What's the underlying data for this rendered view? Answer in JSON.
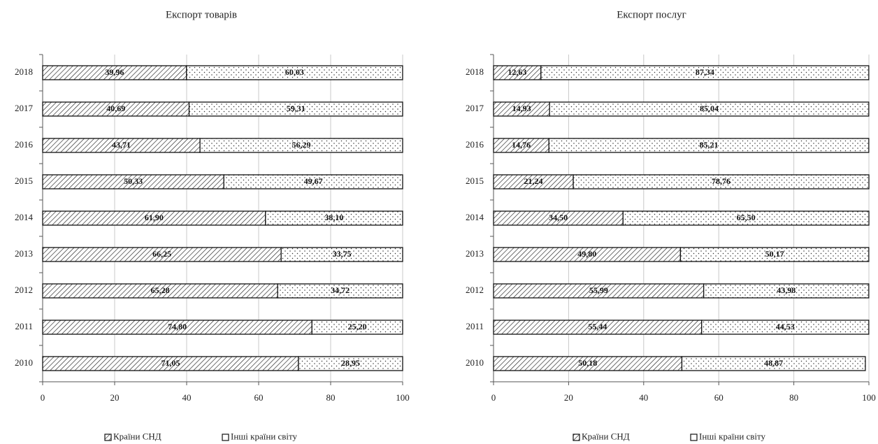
{
  "legend": {
    "cis": "Країни СНД",
    "other": "Інші країни світу"
  },
  "chart_data": [
    {
      "type": "bar",
      "orientation": "horizontal",
      "stacked": true,
      "title": "Експорт товарів",
      "categories": [
        "2010",
        "2011",
        "2012",
        "2013",
        "2014",
        "2015",
        "2016",
        "2017",
        "2018"
      ],
      "series": [
        {
          "name": "Країни СНД",
          "values": [
            71.05,
            74.8,
            65.28,
            66.25,
            61.9,
            50.33,
            43.71,
            40.69,
            39.96
          ],
          "labels": [
            "71,05",
            "74,80",
            "65,28",
            "66,25",
            "61,90",
            "50,33",
            "43,71",
            "40,69",
            "39,96"
          ]
        },
        {
          "name": "Інші країни світу",
          "values": [
            28.95,
            25.2,
            34.72,
            33.75,
            38.1,
            49.67,
            56.29,
            59.31,
            60.03
          ],
          "labels": [
            "28,95",
            "25,20",
            "34,72",
            "33,75",
            "38,10",
            "49,67",
            "56,29",
            "59,31",
            "60,03"
          ]
        }
      ],
      "xlim": [
        0,
        100
      ],
      "xticks": [
        "0",
        "20",
        "40",
        "60",
        "80",
        "100"
      ],
      "grid": true,
      "legend_position": "bottom"
    },
    {
      "type": "bar",
      "orientation": "horizontal",
      "stacked": true,
      "title": "Експорт послуг",
      "categories": [
        "2010",
        "2011",
        "2012",
        "2013",
        "2014",
        "2015",
        "2016",
        "2017",
        "2018"
      ],
      "series": [
        {
          "name": "Країни СНД",
          "values": [
            50.18,
            55.44,
            55.99,
            49.8,
            34.5,
            21.24,
            14.76,
            14.93,
            12.63
          ],
          "labels": [
            "50,18",
            "55,44",
            "55,99",
            "49,80",
            "34,50",
            "21,24",
            "14,76",
            "14,93",
            "12,63"
          ]
        },
        {
          "name": "Інші країни світу",
          "values": [
            48.87,
            44.53,
            43.98,
            50.17,
            65.5,
            78.76,
            85.21,
            85.04,
            87.34
          ],
          "labels": [
            "48,87",
            "44,53",
            "43,98",
            "50,17",
            "65,50",
            "78,76",
            "85,21",
            "85,04",
            "87,34"
          ]
        }
      ],
      "xlim": [
        0,
        100
      ],
      "xticks": [
        "0",
        "20",
        "40",
        "60",
        "80",
        "100"
      ],
      "grid": true,
      "legend_position": "bottom"
    }
  ]
}
